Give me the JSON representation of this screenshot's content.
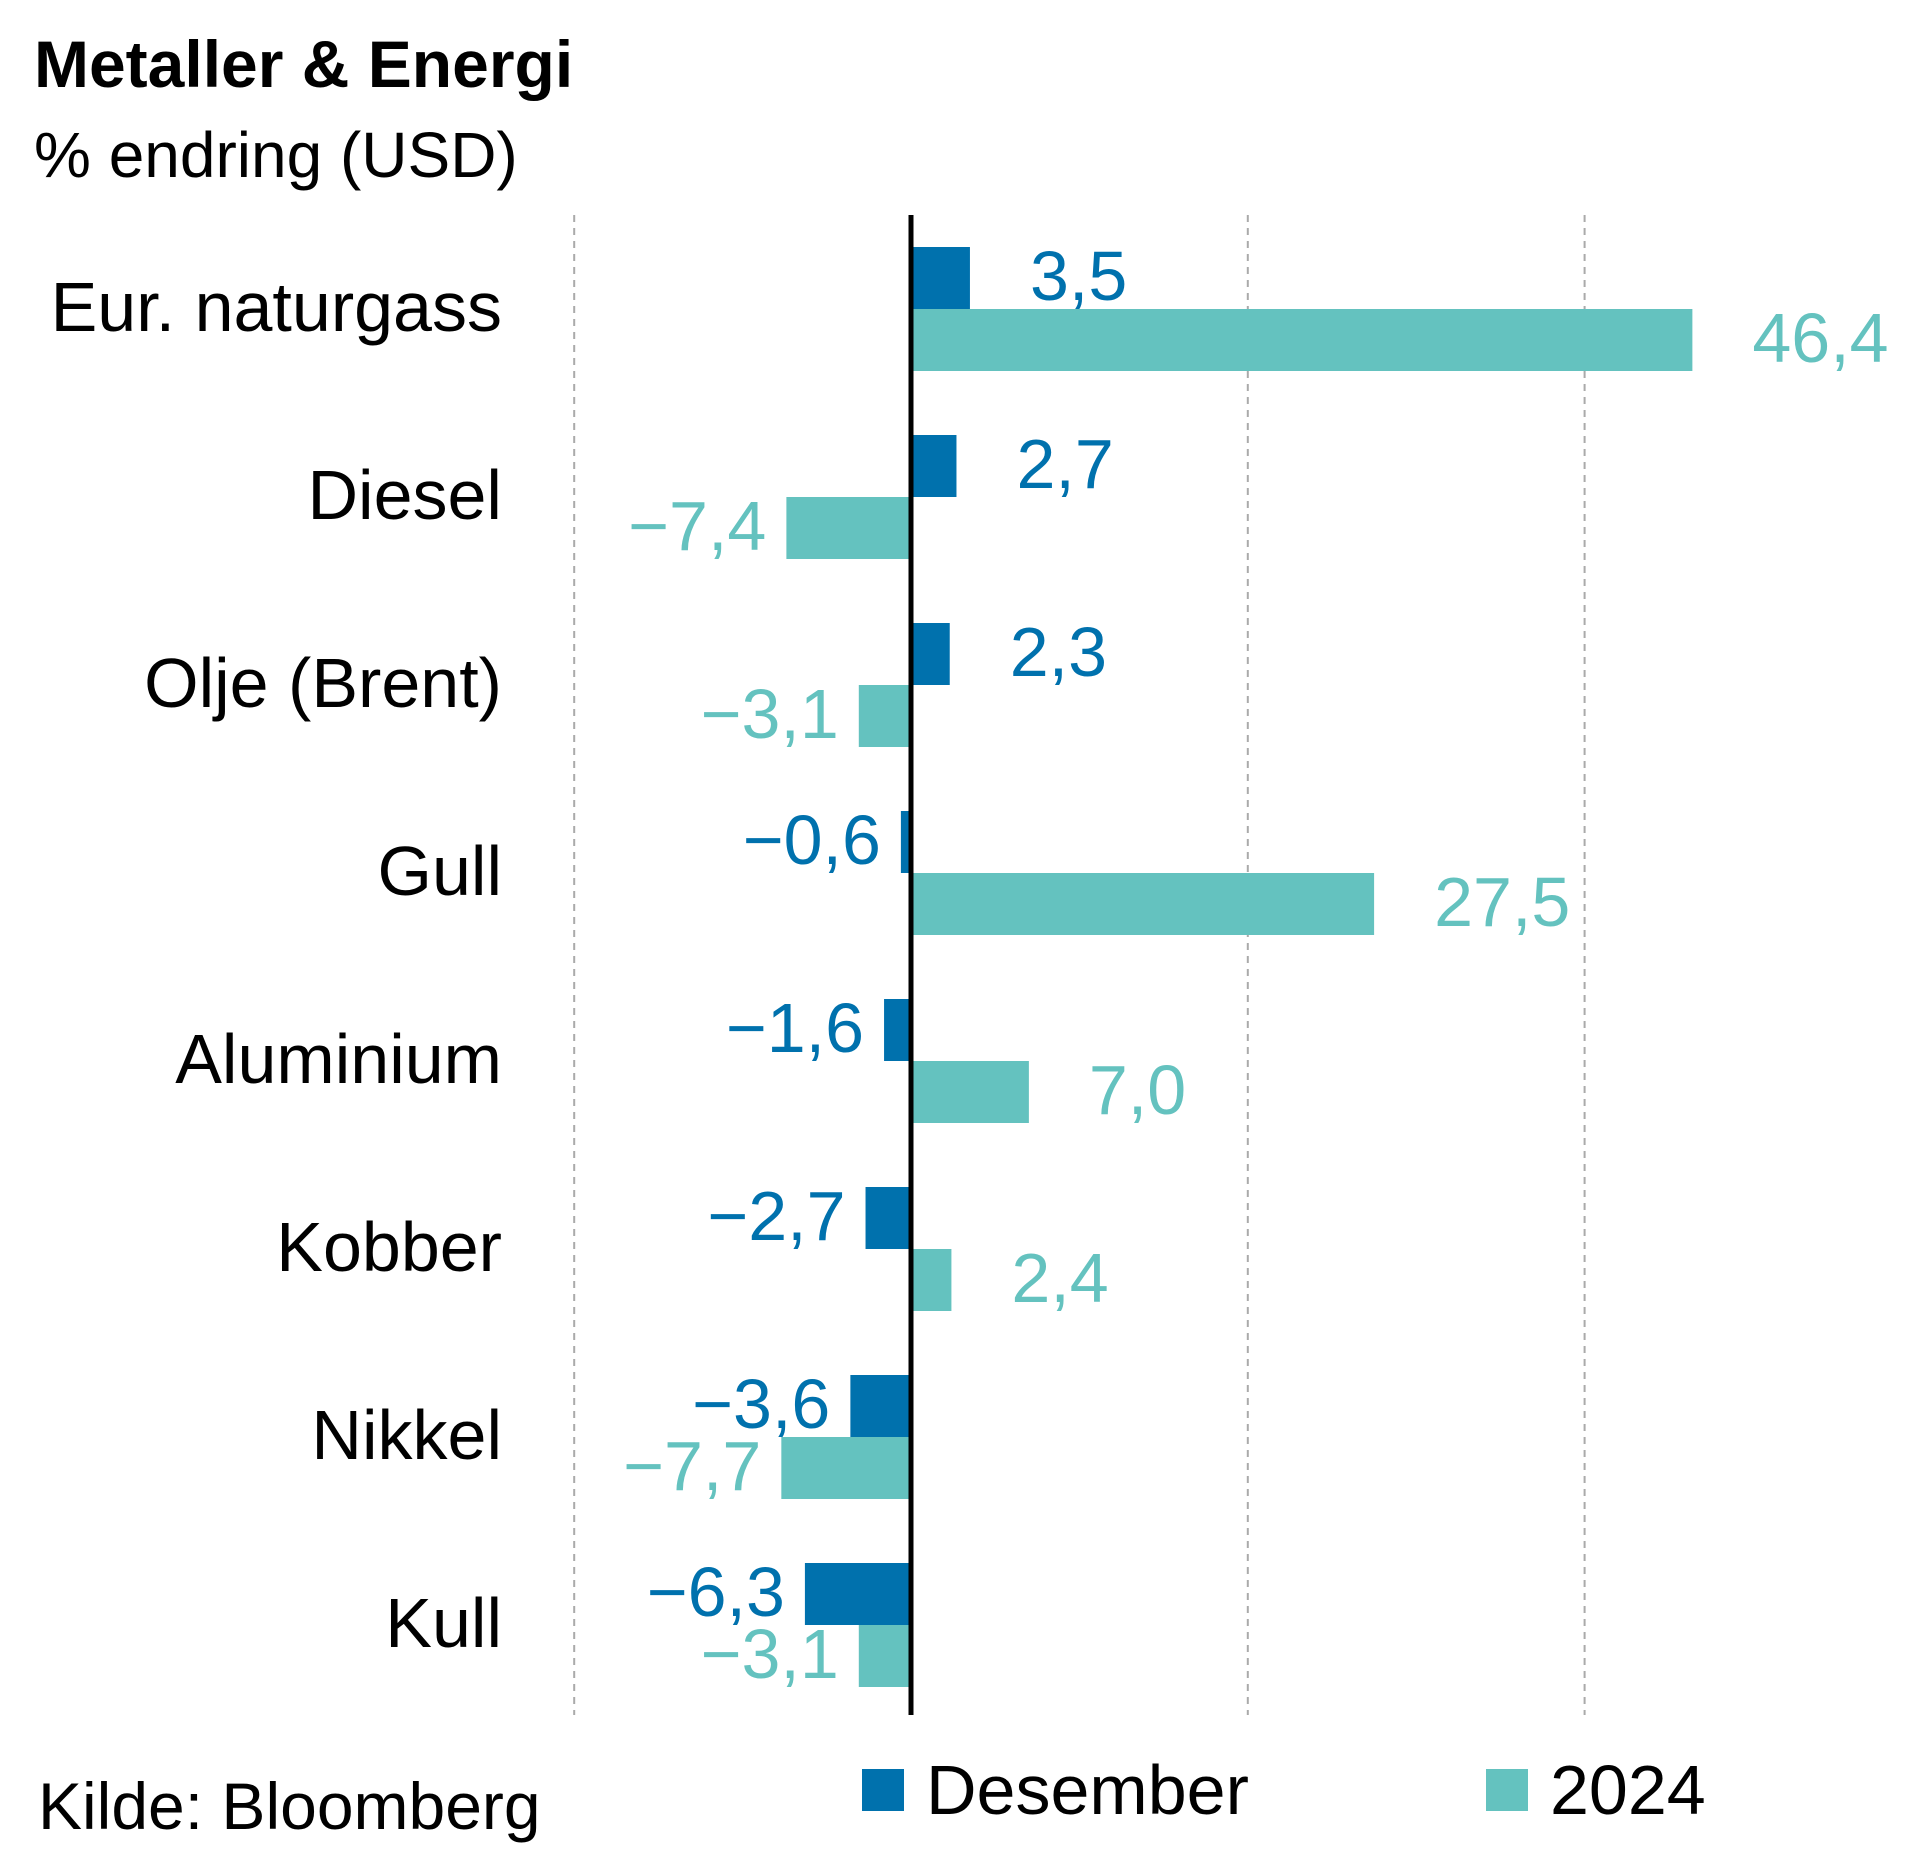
{
  "colors": {
    "series_0": "#0071ad",
    "series_1": "#64c2bf",
    "category_text": "#000000",
    "axis": "#000000",
    "grid": "#aaaaaa"
  },
  "chart_data": {
    "type": "bar",
    "orientation": "horizontal",
    "title": "Metaller & Energi",
    "subtitle": "% endring (USD)",
    "categories": [
      "Eur. naturgass",
      "Diesel",
      "Olje (Brent)",
      "Gull",
      "Aluminium",
      "Kobber",
      "Nikkel",
      "Kull"
    ],
    "series": [
      {
        "name": "Desember",
        "values": [
          3.5,
          2.7,
          2.3,
          -0.6,
          -1.6,
          -2.7,
          -3.6,
          -6.3
        ],
        "labels": [
          "3,5",
          "2,7",
          "2,3",
          "−0,6",
          "−1,6",
          "−2,7",
          "−3,6",
          "−6,3"
        ]
      },
      {
        "name": "2024",
        "values": [
          46.4,
          -7.4,
          -3.1,
          27.5,
          7.0,
          2.4,
          -7.7,
          -3.1
        ],
        "labels": [
          "46,4",
          "−7,4",
          "−3,1",
          "27,5",
          "7,0",
          "2,4",
          "−7,7",
          "−3,1"
        ]
      }
    ],
    "xlim": [
      -20,
      60
    ],
    "gridlines": [
      -20,
      20,
      40
    ],
    "grid": true,
    "legend": "bottom"
  },
  "source": "Kilde: Bloomberg"
}
